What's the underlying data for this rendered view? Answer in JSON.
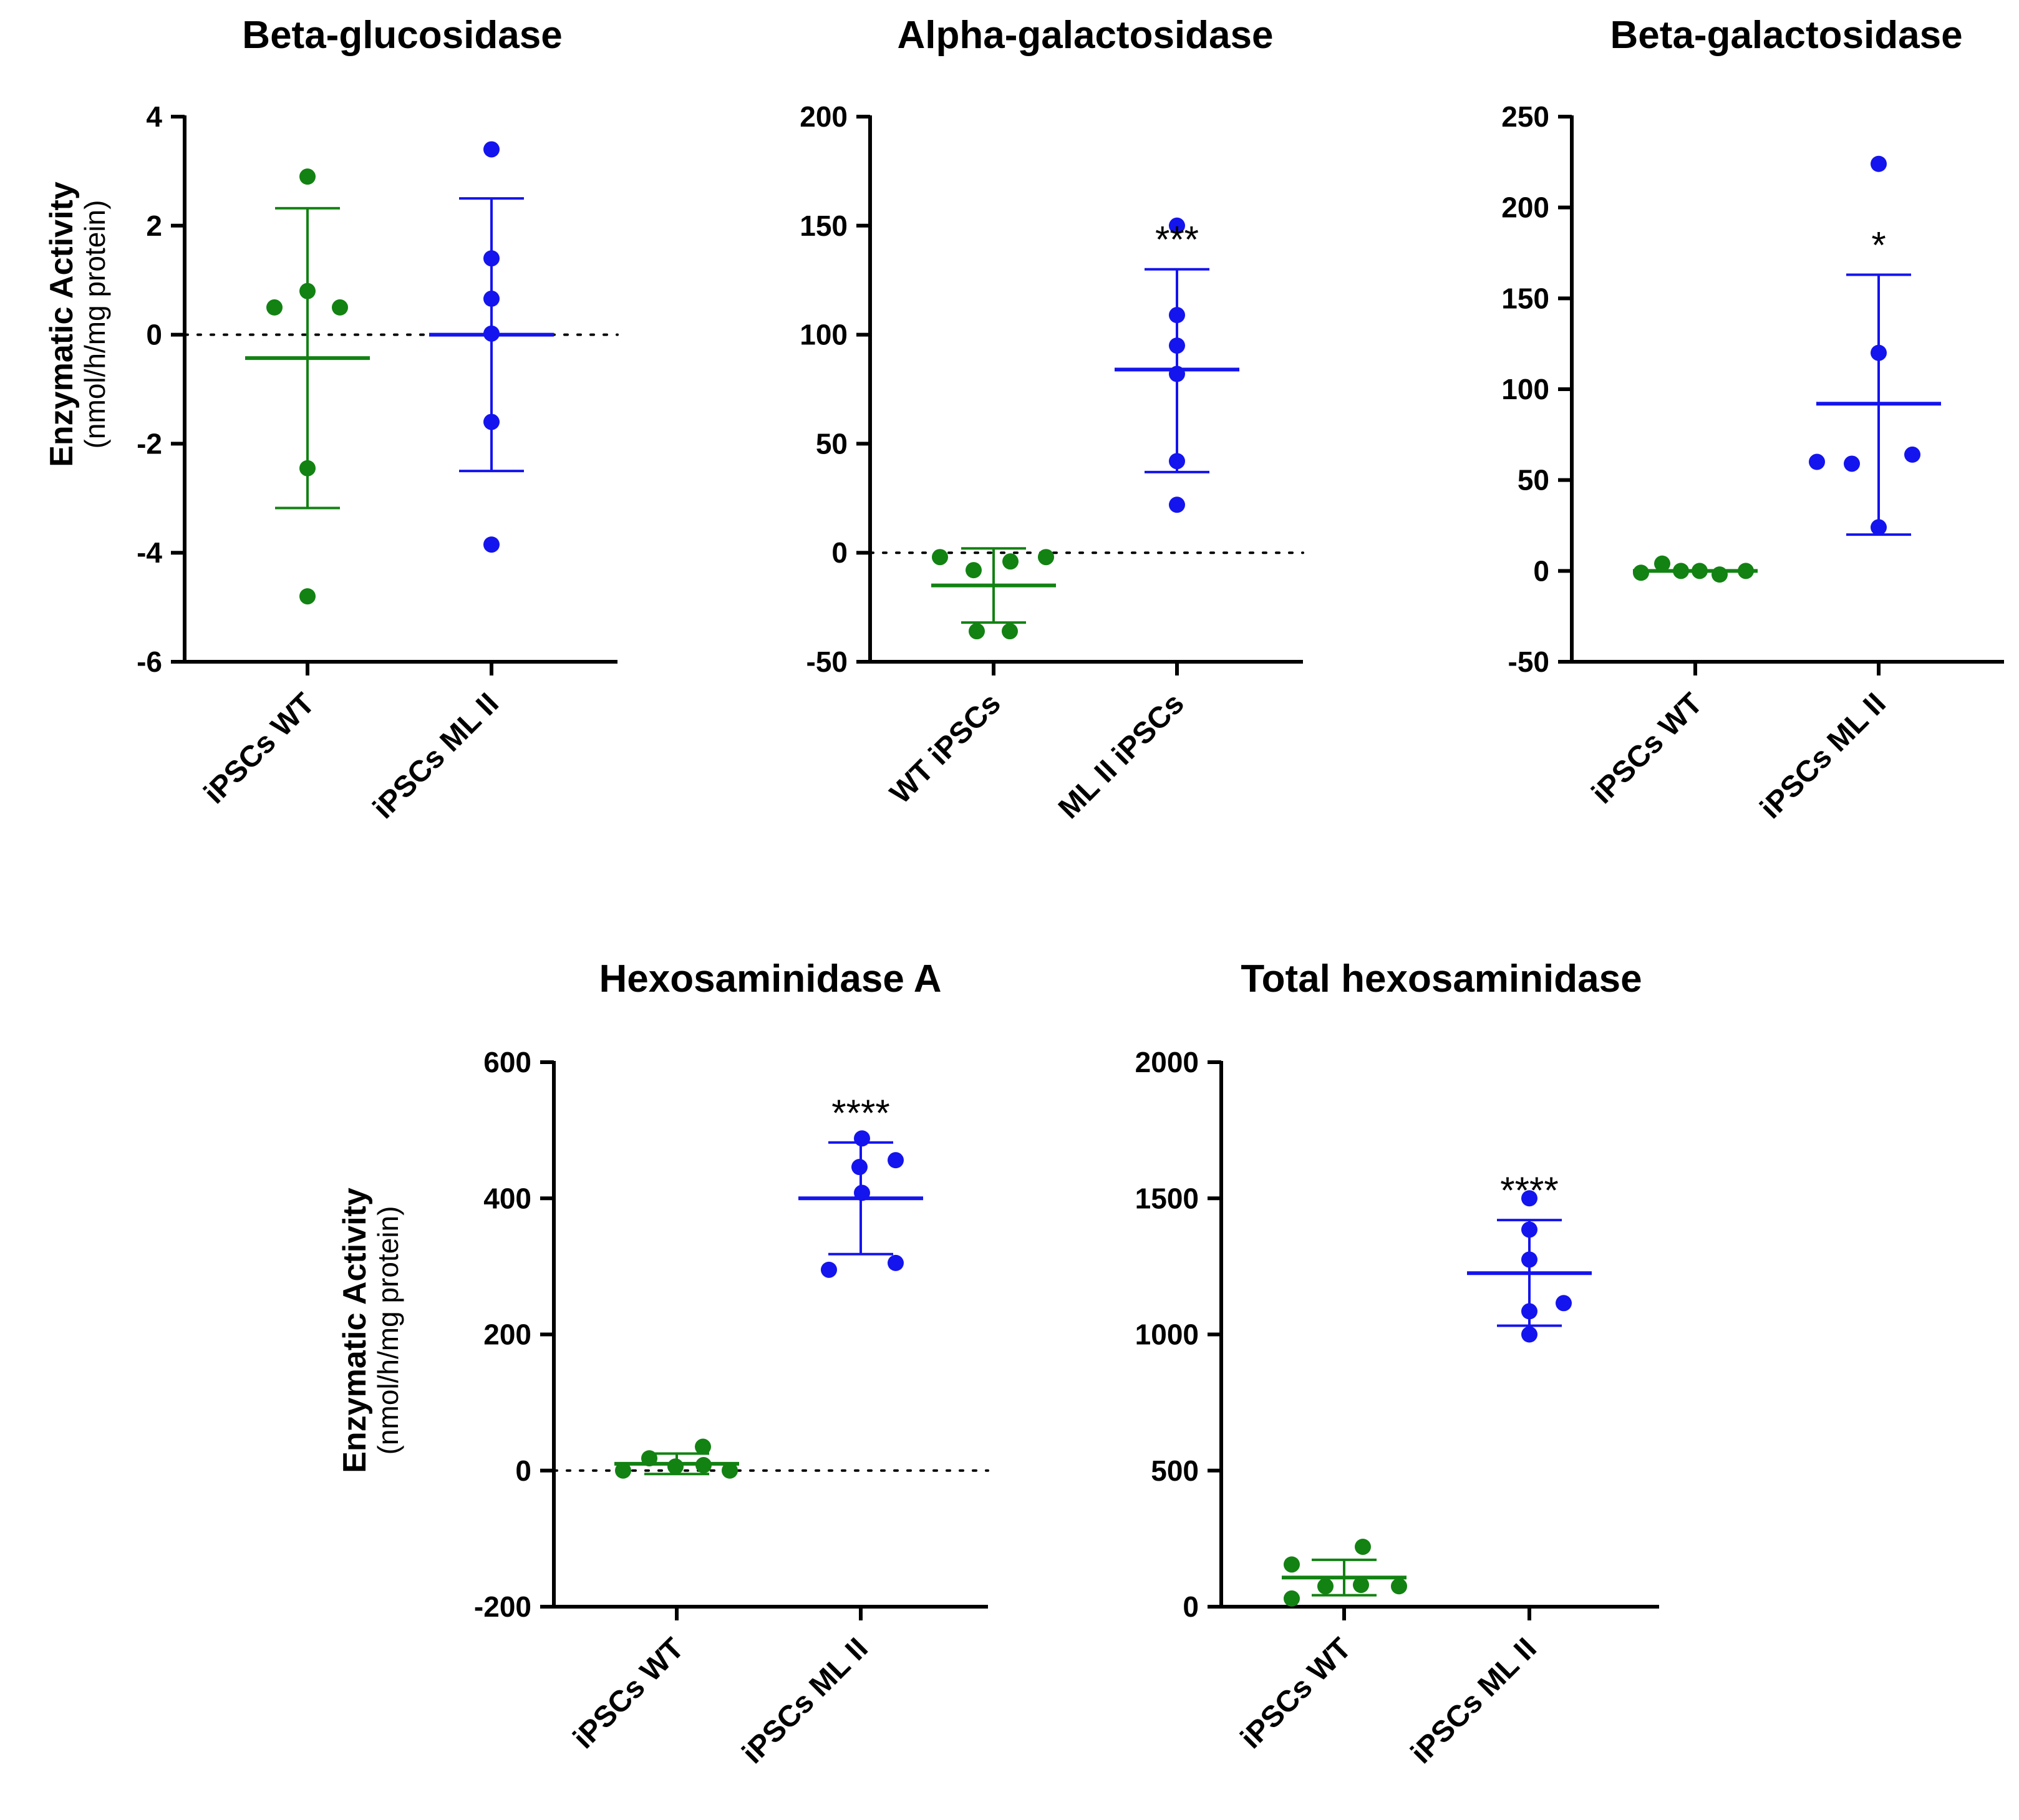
{
  "colors": {
    "wt": "#128212",
    "ml": "#1414ee",
    "axis": "#000000"
  },
  "chart_data": [
    {
      "type": "scatter",
      "title": "Beta-glucosidase",
      "ylabel": "Enzymatic Activity",
      "ylabel_sub": "(nmol/h/mg protein)",
      "ylim": [
        -6,
        4
      ],
      "yticks": [
        4,
        2,
        0,
        -2,
        -4,
        -6
      ],
      "ytick_labels": [
        "4",
        "2",
        "0",
        "-2",
        "-4",
        "-6"
      ],
      "zero_line": true,
      "categories": [
        "iPSCs WT",
        "iPSCs ML II"
      ],
      "series": [
        {
          "points": [
            2.9,
            0.8,
            0.5,
            0.5,
            -2.45,
            -4.8
          ],
          "mean": -0.43,
          "sd_upper": 2.32,
          "sd_lower": -3.18,
          "significance": ""
        },
        {
          "points": [
            3.4,
            1.4,
            0.66,
            0.02,
            -1.6,
            -3.85
          ],
          "mean": 0.0,
          "sd_upper": 2.5,
          "sd_lower": -2.5,
          "significance": ""
        }
      ]
    },
    {
      "type": "scatter",
      "title": "Alpha-galactosidase",
      "ylim": [
        -50,
        200
      ],
      "yticks": [
        200,
        150,
        100,
        50,
        0,
        -50
      ],
      "ytick_labels": [
        "200",
        "150",
        "100",
        "50",
        "0",
        "-50"
      ],
      "zero_line": true,
      "categories": [
        "WT iPSCs",
        "ML II iPSCs"
      ],
      "series": [
        {
          "points": [
            -2,
            -8,
            -4,
            -2,
            -36,
            -36
          ],
          "mean": -15,
          "sd_upper": 2,
          "sd_lower": -32,
          "significance": ""
        },
        {
          "points": [
            150,
            109,
            95,
            82,
            42,
            22
          ],
          "mean": 84,
          "sd_upper": 130,
          "sd_lower": 37,
          "significance": "***"
        }
      ]
    },
    {
      "type": "scatter",
      "title": "Beta-galactosidase",
      "ylim": [
        -50,
        250
      ],
      "yticks": [
        250,
        200,
        150,
        100,
        50,
        0,
        -50
      ],
      "ytick_labels": [
        "250",
        "200",
        "150",
        "100",
        "50",
        "0",
        "-50"
      ],
      "zero_line": false,
      "categories": [
        "iPSCs WT",
        "iPSCs ML II"
      ],
      "series": [
        {
          "points": [
            -1,
            4,
            0,
            0,
            -2,
            0
          ],
          "mean": 0,
          "sd_upper": 0,
          "sd_lower": 0,
          "significance": ""
        },
        {
          "points": [
            224,
            120,
            60,
            59,
            64,
            24
          ],
          "mean": 92,
          "sd_upper": 163,
          "sd_lower": 20,
          "significance": "*"
        }
      ]
    },
    {
      "type": "scatter",
      "title": "Hexosaminidase A",
      "ylabel": "Enzymatic Activity",
      "ylabel_sub": "(nmol/h/mg protein)",
      "ylim": [
        -200,
        600
      ],
      "yticks": [
        600,
        400,
        200,
        0,
        -200
      ],
      "ytick_labels": [
        "600",
        "400",
        "200",
        "0",
        "-200"
      ],
      "zero_line": true,
      "categories": [
        "iPSCs WT",
        "iPSCs ML II"
      ],
      "series": [
        {
          "points": [
            0,
            18,
            6,
            8,
            35,
            0
          ],
          "mean": 10,
          "sd_upper": 25,
          "sd_lower": -5,
          "significance": ""
        },
        {
          "points": [
            295,
            488,
            446,
            408,
            456,
            305
          ],
          "mean": 400,
          "sd_upper": 482,
          "sd_lower": 318,
          "significance": "****"
        }
      ]
    },
    {
      "type": "scatter",
      "title": "Total hexosaminidase",
      "ylim": [
        0,
        2000
      ],
      "yticks": [
        2000,
        1500,
        1000,
        500,
        0
      ],
      "ytick_labels": [
        "2000",
        "1500",
        "1000",
        "500",
        "0"
      ],
      "zero_line": false,
      "categories": [
        "iPSCs WT",
        "iPSCs ML II"
      ],
      "series": [
        {
          "points": [
            30,
            155,
            75,
            80,
            220,
            75
          ],
          "mean": 107,
          "sd_upper": 172,
          "sd_lower": 42,
          "significance": ""
        },
        {
          "points": [
            1500,
            1385,
            1275,
            1085,
            1000,
            1115
          ],
          "mean": 1225,
          "sd_upper": 1420,
          "sd_lower": 1032,
          "significance": "****"
        }
      ]
    }
  ]
}
